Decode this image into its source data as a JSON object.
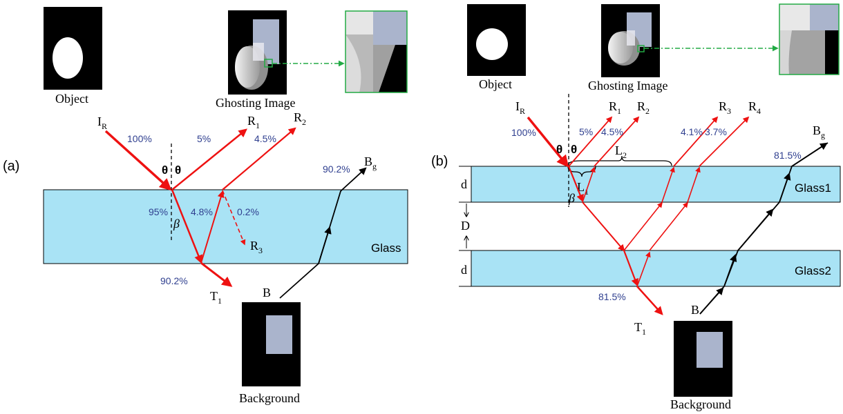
{
  "panel_a": {
    "panel_label": "(a)",
    "object_caption": "Object",
    "ghost_caption": "Ghosting Image",
    "background_caption": "Background",
    "glass_label": "Glass",
    "beam_labels": {
      "incident": "I",
      "incident_sub": "R",
      "r1": "R",
      "r1_sub": "1",
      "r2": "R",
      "r2_sub": "2",
      "r3": "R",
      "r3_sub": "3",
      "t1": "T",
      "t1_sub": "1",
      "b": "B",
      "bg": "B",
      "bg_sub": "g"
    },
    "angles": {
      "theta_left": "θ",
      "theta_right": "θ",
      "beta": "β"
    },
    "percents": {
      "incident": "100%",
      "r1": "5%",
      "r2": "4.5%",
      "refracted": "95%",
      "internal": "4.8%",
      "r3": "0.2%",
      "t1": "90.2%",
      "bg": "90.2%"
    }
  },
  "panel_b": {
    "panel_label": "(b)",
    "object_caption": "Object",
    "ghost_caption": "Ghosting Image",
    "background_caption": "Background",
    "glass1_label": "Glass1",
    "glass2_label": "Glass2",
    "dims": {
      "d_top": "d",
      "gap": "D",
      "d_bottom": "d",
      "l1": "L",
      "l1_sub": "1",
      "l2": "L",
      "l2_sub": "2"
    },
    "beam_labels": {
      "incident": "I",
      "incident_sub": "R",
      "r1": "R",
      "r1_sub": "1",
      "r2": "R",
      "r2_sub": "2",
      "r3": "R",
      "r3_sub": "3",
      "r4": "R",
      "r4_sub": "4",
      "t1": "T",
      "t1_sub": "1",
      "b": "B",
      "bg": "B",
      "bg_sub": "g"
    },
    "angles": {
      "theta_left": "θ",
      "theta_right": "θ",
      "beta": "β"
    },
    "percents": {
      "incident": "100%",
      "r1": "5%",
      "r2": "4.5%",
      "r3": "4.1%",
      "r4": "3.7%",
      "bg": "81.5%",
      "t1": "81.5%"
    }
  },
  "colors": {
    "ray": "#ee1111",
    "glass": "#a9e3f5",
    "image_fill": "#000000",
    "object_white": "#ffffff",
    "background_square": "#aab4cc",
    "zoom_line": "#22aa44",
    "percent_text": "#2f3f8f"
  }
}
